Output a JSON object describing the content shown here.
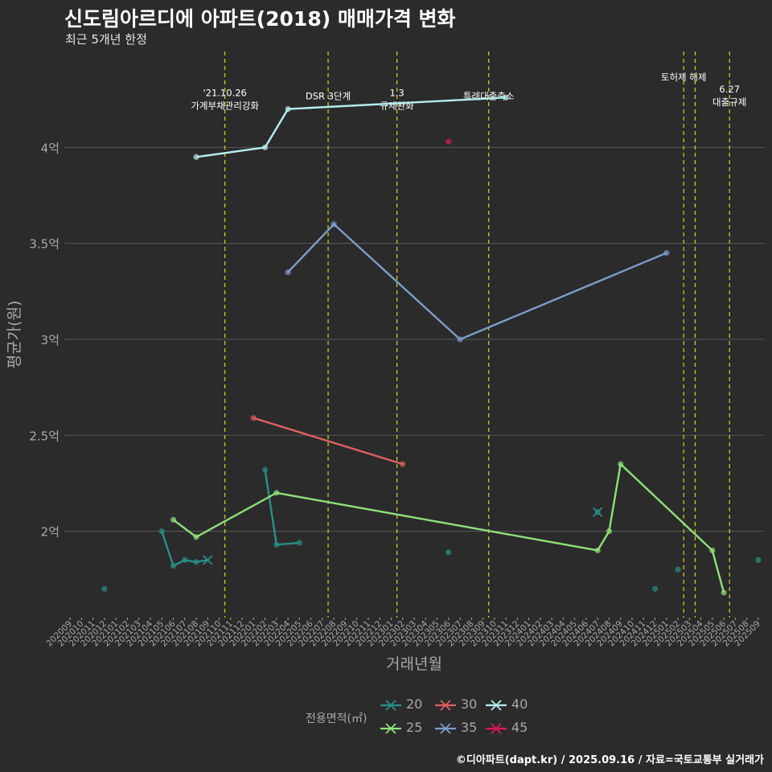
{
  "title": "신도림아르디에 아파트(2018) 매매가격 변화",
  "subtitle": "최근 5개년 한정",
  "credit": "©디아파트(dapt.kr) / 2025.09.16 / 자료=국토교통부 실거래가",
  "colors": {
    "background": "#2b2b2c",
    "grid": "#5a5a5a",
    "event_line": "#d6d21c",
    "axis_text": "#a9a9a9"
  },
  "chart_data": {
    "type": "line",
    "title": "신도림아르디에 아파트(2018) 매매가격 변화",
    "xlabel": "거래년월",
    "ylabel": "평균가(원)",
    "ylim": [
      1.55,
      4.5
    ],
    "y_ticks": [
      {
        "value": 2.0,
        "label": "2억"
      },
      {
        "value": 2.5,
        "label": "2.5억"
      },
      {
        "value": 3.0,
        "label": "3억"
      },
      {
        "value": 3.5,
        "label": "3.5억"
      },
      {
        "value": 4.0,
        "label": "4억"
      }
    ],
    "x_categories": [
      "202009",
      "202010",
      "202011",
      "202012",
      "202101",
      "202102",
      "202103",
      "202104",
      "202105",
      "202106",
      "202107",
      "202108",
      "202109",
      "202110",
      "202111",
      "202112",
      "202201",
      "202202",
      "202203",
      "202204",
      "202205",
      "202206",
      "202207",
      "202208",
      "202209",
      "202210",
      "202211",
      "202212",
      "202301",
      "202302",
      "202303",
      "202304",
      "202305",
      "202306",
      "202307",
      "202308",
      "202309",
      "202310",
      "202311",
      "202312",
      "202401",
      "202402",
      "202403",
      "202404",
      "202405",
      "202406",
      "202407",
      "202408",
      "202409",
      "202410",
      "202411",
      "202412",
      "202501",
      "202502",
      "202503",
      "202504",
      "202505",
      "202506",
      "202507",
      "202508",
      "202509"
    ],
    "events": [
      {
        "x": 13.5,
        "label": "'21.10.26\n가계부채관리강화",
        "label_y": 4.2
      },
      {
        "x": 22.5,
        "label": "DSR 3단계",
        "label_y": 4.25
      },
      {
        "x": 28.5,
        "label": "1.3\n규제완화",
        "label_y": 4.2
      },
      {
        "x": 36.5,
        "label": "특례대출축소",
        "label_y": 4.25
      },
      {
        "x": 53.5,
        "label": "토허제 해제",
        "label_y": 4.35
      },
      {
        "x": 54.5,
        "label": "",
        "label_y": 4.35
      },
      {
        "x": 57.5,
        "label": "6.27\n대출규제",
        "label_y": 4.22
      }
    ],
    "series": [
      {
        "name": "20",
        "color": "#2a8f86",
        "line": [
          [
            8,
            2.0
          ],
          [
            9,
            1.82
          ],
          [
            10,
            1.85
          ],
          [
            11,
            1.84
          ],
          [
            12,
            1.85
          ]
        ],
        "line2": [
          [
            17,
            2.32
          ],
          [
            18,
            1.93
          ],
          [
            20,
            1.94
          ]
        ],
        "points": [
          [
            3,
            1.7
          ],
          [
            8,
            2.0
          ],
          [
            9,
            1.82
          ],
          [
            10,
            1.85
          ],
          [
            11,
            1.84
          ],
          [
            17,
            2.32
          ],
          [
            18,
            1.93
          ],
          [
            20,
            1.94
          ],
          [
            33,
            1.89
          ],
          [
            46,
            2.1
          ],
          [
            51,
            1.7
          ],
          [
            53,
            1.8
          ],
          [
            60,
            1.85
          ]
        ],
        "crosses": [
          [
            12,
            1.85
          ],
          [
            46,
            2.1
          ]
        ]
      },
      {
        "name": "25",
        "color": "#8fe07a",
        "line": [
          [
            9,
            2.06
          ],
          [
            11,
            1.97
          ],
          [
            18,
            2.2
          ],
          [
            46,
            1.9
          ],
          [
            47,
            2.0
          ],
          [
            48,
            2.35
          ],
          [
            56,
            1.9
          ],
          [
            57,
            1.68
          ]
        ],
        "points": [
          [
            9,
            2.06
          ],
          [
            11,
            1.97
          ],
          [
            18,
            2.2
          ],
          [
            46,
            1.9
          ],
          [
            47,
            2.0
          ],
          [
            48,
            2.35
          ],
          [
            56,
            1.9
          ],
          [
            57,
            1.68
          ]
        ],
        "crosses": []
      },
      {
        "name": "30",
        "color": "#e06060",
        "line": [
          [
            16,
            2.59
          ],
          [
            29,
            2.35
          ]
        ],
        "points": [
          [
            16,
            2.59
          ],
          [
            29,
            2.35
          ]
        ],
        "crosses": []
      },
      {
        "name": "35",
        "color": "#7f9cc8",
        "line": [
          [
            19,
            3.35
          ],
          [
            23,
            3.6
          ],
          [
            34,
            3.0
          ],
          [
            52,
            3.45
          ]
        ],
        "points": [
          [
            19,
            3.35
          ],
          [
            23,
            3.6
          ],
          [
            34,
            3.0
          ],
          [
            52,
            3.45
          ]
        ],
        "crosses": []
      },
      {
        "name": "40",
        "color": "#b6eeee",
        "line": [
          [
            11,
            3.95
          ],
          [
            17,
            4.0
          ],
          [
            19,
            4.2
          ],
          [
            38,
            4.26
          ]
        ],
        "points": [
          [
            11,
            3.95
          ],
          [
            17,
            4.0
          ],
          [
            19,
            4.2
          ],
          [
            38,
            4.26
          ]
        ],
        "crosses": []
      },
      {
        "name": "45",
        "color": "#e0155a",
        "line": [],
        "points": [
          [
            33,
            4.03
          ]
        ],
        "crosses": []
      }
    ],
    "legend": {
      "title": "전용면적(㎡)",
      "entries": [
        "20",
        "30",
        "40",
        "25",
        "35",
        "45"
      ]
    }
  }
}
